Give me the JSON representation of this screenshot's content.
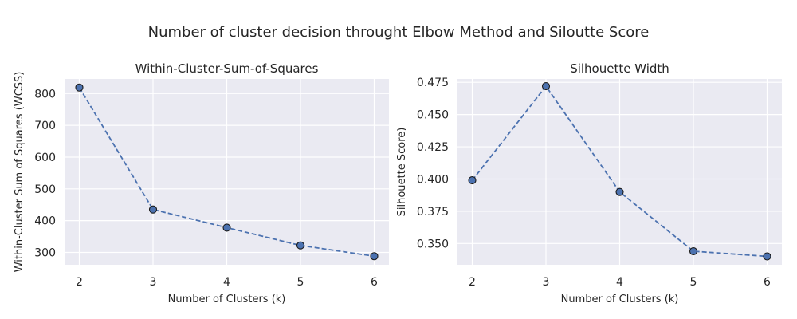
{
  "figure": {
    "suptitle": "Number of cluster decision throught Elbow Method and Siloutte Score",
    "colors": {
      "panel_bg": "#eaeaf2",
      "grid": "#ffffff",
      "line": "#4c72b0",
      "marker_edge": "#1a1a1a",
      "text": "#262626"
    }
  },
  "chart_data": [
    {
      "type": "line",
      "title": "Within-Cluster-Sum-of-Squares",
      "xlabel": "Number of Clusters (k)",
      "ylabel": "Within-Cluster Sum of Squares (WCSS)",
      "x": [
        2,
        3,
        4,
        5,
        6
      ],
      "y": [
        819,
        435,
        378,
        322,
        288
      ],
      "xlim": [
        1.8,
        6.2
      ],
      "ylim": [
        261,
        846
      ],
      "xticks": [
        "2",
        "3",
        "4",
        "5",
        "6"
      ],
      "yticks": [
        "300",
        "400",
        "500",
        "600",
        "700",
        "800"
      ],
      "line_style": "dashed",
      "marker": "circle",
      "grid": true
    },
    {
      "type": "line",
      "title": "Silhouette Width",
      "xlabel": "Number of Clusters (k)",
      "ylabel": "Silhouette Score)",
      "x": [
        2,
        3,
        4,
        5,
        6
      ],
      "y": [
        0.399,
        0.472,
        0.39,
        0.344,
        0.34
      ],
      "xlim": [
        1.8,
        6.2
      ],
      "ylim": [
        0.3335,
        0.4776
      ],
      "xticks": [
        "2",
        "3",
        "4",
        "5",
        "6"
      ],
      "yticks": [
        "0.350",
        "0.375",
        "0.400",
        "0.425",
        "0.450",
        "0.475"
      ],
      "line_style": "dashed",
      "marker": "circle",
      "grid": true
    }
  ]
}
